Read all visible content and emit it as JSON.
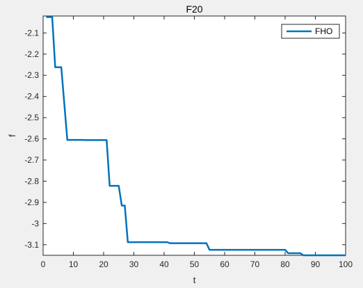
{
  "chart_data": {
    "type": "line",
    "title": "F20",
    "xlabel": "t",
    "ylabel": "f",
    "xlim": [
      0,
      100
    ],
    "ylim": [
      -3.15,
      -2.02
    ],
    "xticks": [
      0,
      10,
      20,
      30,
      40,
      50,
      60,
      70,
      80,
      90,
      100
    ],
    "yticks": [
      -3.1,
      -3,
      -2.9,
      -2.8,
      -2.7,
      -2.6,
      -2.5,
      -2.4,
      -2.3,
      -2.2,
      -2.1
    ],
    "ytick_labels": [
      "-3.1",
      "-3",
      "-2.9",
      "-2.8",
      "-2.7",
      "-2.6",
      "-2.5",
      "-2.4",
      "-2.3",
      "-2.2",
      "-2.1"
    ],
    "grid": false,
    "legend_position": "top-right",
    "series": [
      {
        "name": "FHO",
        "color": "#0072bd",
        "x": [
          1,
          3,
          4,
          6,
          8,
          13,
          14,
          21,
          22,
          25,
          26,
          27,
          28,
          41,
          42,
          54,
          55,
          80,
          81,
          85,
          86,
          100
        ],
        "y": [
          -2.025,
          -2.025,
          -2.262,
          -2.262,
          -2.605,
          -2.605,
          -2.606,
          -2.606,
          -2.822,
          -2.822,
          -2.915,
          -2.915,
          -3.088,
          -3.088,
          -3.093,
          -3.093,
          -3.124,
          -3.124,
          -3.14,
          -3.14,
          -3.15,
          -3.15
        ]
      }
    ]
  }
}
